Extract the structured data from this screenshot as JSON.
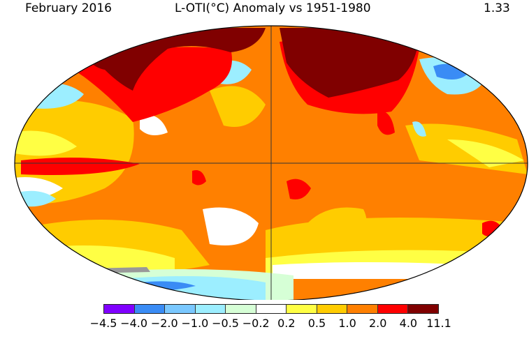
{
  "header": {
    "date": "February 2016",
    "title": "L-OTI(°C) Anomaly vs 1951-1980",
    "global_mean": "1.33"
  },
  "map": {
    "projection": "Robinson",
    "grid_lines": [
      "equator",
      "prime-meridian"
    ]
  },
  "colorbar": {
    "bins": [
      {
        "color": "#8000ff"
      },
      {
        "color": "#3a8cf5"
      },
      {
        "color": "#7ac8ff"
      },
      {
        "color": "#9ceeff"
      },
      {
        "color": "#d6ffd6"
      },
      {
        "color": "#ffffff"
      },
      {
        "color": "#ffff44"
      },
      {
        "color": "#ffcc00"
      },
      {
        "color": "#ff8000"
      },
      {
        "color": "#ff0000"
      },
      {
        "color": "#800000"
      }
    ],
    "tick_labels": [
      "−4.5",
      "−4.0",
      "−2.0",
      "−1.0",
      "−0.5",
      "−0.2",
      "0.2",
      "0.5",
      "1.0",
      "2.0",
      "4.0",
      "11.1"
    ]
  }
}
